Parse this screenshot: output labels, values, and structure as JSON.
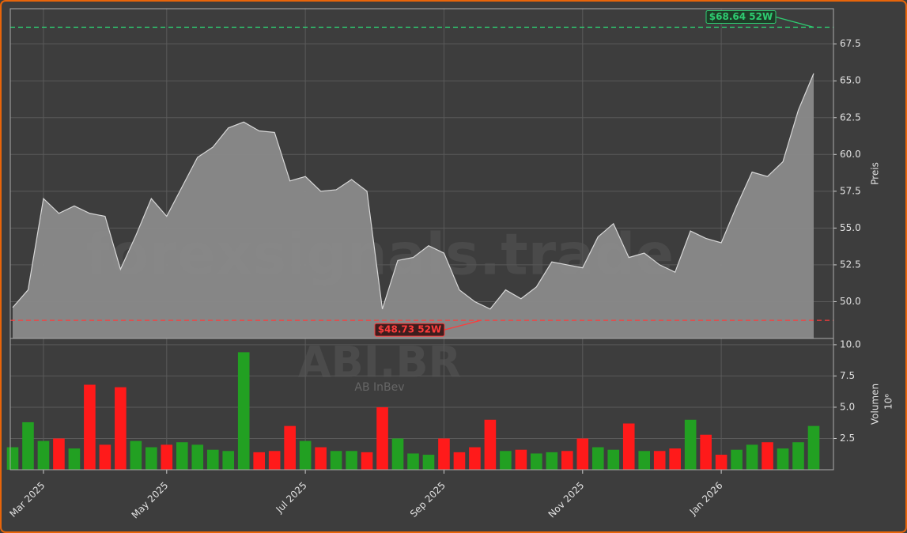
{
  "chart_data": [
    {
      "type": "area",
      "ylabel": "Preis",
      "color": "#8a8a8a",
      "line_color": "#d8d8d8",
      "values": [
        49.6,
        50.8,
        57.0,
        56.0,
        56.5,
        56.0,
        55.8,
        52.2,
        54.5,
        57.0,
        55.8,
        57.8,
        59.8,
        60.5,
        61.8,
        62.2,
        61.6,
        61.5,
        58.2,
        58.5,
        57.5,
        57.6,
        58.3,
        57.5,
        49.5,
        52.8,
        53.0,
        53.8,
        53.3,
        50.8,
        50.0,
        49.5,
        50.8,
        50.2,
        51.0,
        52.7,
        52.5,
        52.3,
        54.4,
        55.3,
        53.0,
        53.3,
        52.5,
        52.0,
        54.8,
        54.3,
        54.0,
        56.5,
        58.8,
        58.5,
        59.5,
        63.0,
        65.5
      ],
      "ylim": [
        47.5,
        69.9
      ],
      "yticks": [
        {
          "value": 50,
          "label": "50.0"
        },
        52.5,
        {
          "value": 55,
          "label": "55.0"
        },
        57.5,
        {
          "value": 60,
          "label": "60.0"
        },
        62.5,
        {
          "value": 65,
          "label": "65.0"
        },
        67.5
      ],
      "grid": true,
      "high": {
        "value": 68.64,
        "label": "$68.64 52W",
        "color": "#2ecc71"
      },
      "low": {
        "value": 48.73,
        "label": "$48.73 52W",
        "color": "#ff3b3b"
      },
      "watermark": "forexsignals.trade"
    },
    {
      "type": "bar",
      "ylabel": "Volumen",
      "exponent": "10⁶",
      "up_color": "#22a022",
      "down_color": "#ff1a1a",
      "categories": [
        null,
        null,
        "Mar 2025",
        null,
        null,
        null,
        null,
        null,
        null,
        null,
        "May 2025",
        null,
        null,
        null,
        null,
        null,
        null,
        null,
        null,
        "Jul 2025",
        null,
        null,
        null,
        null,
        null,
        null,
        null,
        null,
        "Sep 2025",
        null,
        null,
        null,
        null,
        null,
        null,
        null,
        null,
        "Nov 2025",
        null,
        null,
        null,
        null,
        null,
        null,
        null,
        null,
        "Jan 2026",
        null,
        null,
        null,
        null,
        null,
        null
      ],
      "values": [
        1.8,
        3.8,
        2.3,
        2.5,
        1.7,
        6.8,
        2.0,
        6.6,
        2.3,
        1.8,
        2.0,
        2.2,
        2.0,
        1.6,
        1.5,
        9.4,
        1.4,
        1.5,
        3.5,
        2.3,
        1.8,
        1.5,
        1.5,
        1.4,
        5.0,
        2.5,
        1.3,
        1.2,
        2.5,
        1.4,
        1.8,
        4.0,
        1.5,
        1.6,
        1.3,
        1.4,
        1.5,
        2.5,
        1.8,
        1.6,
        3.7,
        1.5,
        1.5,
        1.7,
        4.0,
        2.8,
        1.2,
        1.6,
        2.0,
        2.2,
        1.7,
        2.2,
        3.5
      ],
      "ylim": [
        0,
        10.5
      ],
      "yticks": [
        2.5,
        {
          "value": 5,
          "label": "5.0"
        },
        7.5,
        {
          "value": 10,
          "label": "10.0"
        }
      ],
      "grid": true,
      "title": "ABI.BR",
      "subtitle": "AB InBev"
    }
  ]
}
